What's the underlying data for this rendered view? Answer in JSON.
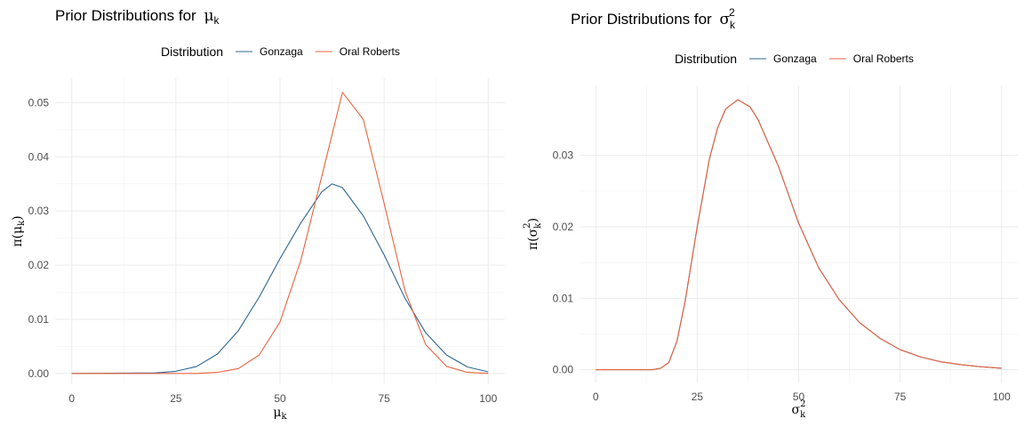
{
  "chart_data": [
    {
      "type": "line",
      "title": "Prior Distributions for",
      "title_symbol": "μ",
      "title_sub": "k",
      "xlabel_symbol": "μ",
      "xlabel_sub": "k",
      "ylabel_prefix": "π(",
      "ylabel_symbol": "μ",
      "ylabel_sub": "k",
      "ylabel_suffix": ")",
      "legend": {
        "title": "Distribution",
        "position": "top",
        "entries": [
          "Gonzaga",
          "Oral Roberts"
        ]
      },
      "xlim": [
        -4,
        104
      ],
      "ylim": [
        -0.002,
        0.0545
      ],
      "x_ticks": [
        0,
        25,
        50,
        75,
        100
      ],
      "x_tick_labels": [
        "0",
        "25",
        "50",
        "75",
        "100"
      ],
      "y_ticks": [
        0.0,
        0.01,
        0.02,
        0.03,
        0.04,
        0.05
      ],
      "y_tick_labels": [
        "0.00",
        "0.01",
        "0.02",
        "0.03",
        "0.04",
        "0.05"
      ],
      "grid": true,
      "series": [
        {
          "name": "Gonzaga",
          "color": "#2c6792",
          "x": [
            0,
            20,
            25,
            30,
            35,
            40,
            45,
            50,
            55,
            60,
            62.5,
            65,
            70,
            75,
            80,
            85,
            90,
            95,
            100
          ],
          "values": [
            0.0,
            0.0001,
            0.0004,
            0.0013,
            0.0036,
            0.0079,
            0.0141,
            0.0212,
            0.0278,
            0.0335,
            0.035,
            0.0343,
            0.0291,
            0.0219,
            0.0139,
            0.0075,
            0.0034,
            0.0012,
            0.0003
          ]
        },
        {
          "name": "Oral Roberts",
          "color": "#e8643f",
          "x": [
            0,
            30,
            35,
            40,
            45,
            50,
            55,
            60,
            65,
            70,
            75,
            80,
            85,
            90,
            95,
            100
          ],
          "values": [
            0.0,
            0.0,
            0.0002,
            0.0009,
            0.0034,
            0.0095,
            0.0209,
            0.0363,
            0.0519,
            0.0469,
            0.0314,
            0.0153,
            0.0053,
            0.0013,
            0.0002,
            0.0
          ]
        }
      ]
    },
    {
      "type": "line",
      "title": "Prior Distributions for",
      "title_symbol": "σ",
      "title_sub": "k",
      "title_sup": "2",
      "xlabel_symbol": "σ",
      "xlabel_sub": "k",
      "xlabel_sup": "2",
      "ylabel_prefix": "π(",
      "ylabel_symbol": "σ",
      "ylabel_sub": "k",
      "ylabel_sup": "2",
      "ylabel_suffix": ")",
      "legend": {
        "title": "Distribution",
        "position": "top",
        "entries": [
          "Gonzaga",
          "Oral Roberts"
        ]
      },
      "xlim": [
        -4,
        104
      ],
      "ylim": [
        -0.0018,
        0.0398
      ],
      "x_ticks": [
        0,
        25,
        50,
        75,
        100
      ],
      "x_tick_labels": [
        "0",
        "25",
        "50",
        "75",
        "100"
      ],
      "y_ticks": [
        0.0,
        0.01,
        0.02,
        0.03
      ],
      "y_tick_labels": [
        "0.00",
        "0.01",
        "0.02",
        "0.03"
      ],
      "grid": true,
      "series": [
        {
          "name": "Gonzaga",
          "color": "#2c6792",
          "x": [
            0,
            10,
            14,
            16,
            18,
            20,
            22,
            25,
            28,
            30,
            32,
            35,
            38,
            40,
            45,
            50,
            55,
            60,
            65,
            70,
            75,
            80,
            85,
            90,
            95,
            100
          ],
          "values": [
            0.0,
            0.0,
            0.0,
            0.0002,
            0.001,
            0.004,
            0.0095,
            0.02,
            0.0295,
            0.0338,
            0.0365,
            0.0378,
            0.0368,
            0.035,
            0.0285,
            0.0205,
            0.0142,
            0.0098,
            0.0066,
            0.0044,
            0.0028,
            0.0018,
            0.0011,
            0.0007,
            0.0004,
            0.0002
          ]
        },
        {
          "name": "Oral Roberts",
          "color": "#e8643f",
          "x": [
            0,
            10,
            14,
            16,
            18,
            20,
            22,
            25,
            28,
            30,
            32,
            35,
            38,
            40,
            45,
            50,
            55,
            60,
            65,
            70,
            75,
            80,
            85,
            90,
            95,
            100
          ],
          "values": [
            0.0,
            0.0,
            0.0,
            0.0002,
            0.001,
            0.004,
            0.0095,
            0.02,
            0.0295,
            0.0338,
            0.0365,
            0.0378,
            0.0368,
            0.035,
            0.0285,
            0.0205,
            0.0142,
            0.0098,
            0.0066,
            0.0044,
            0.0028,
            0.0018,
            0.0011,
            0.0007,
            0.0004,
            0.0002
          ]
        }
      ]
    }
  ]
}
